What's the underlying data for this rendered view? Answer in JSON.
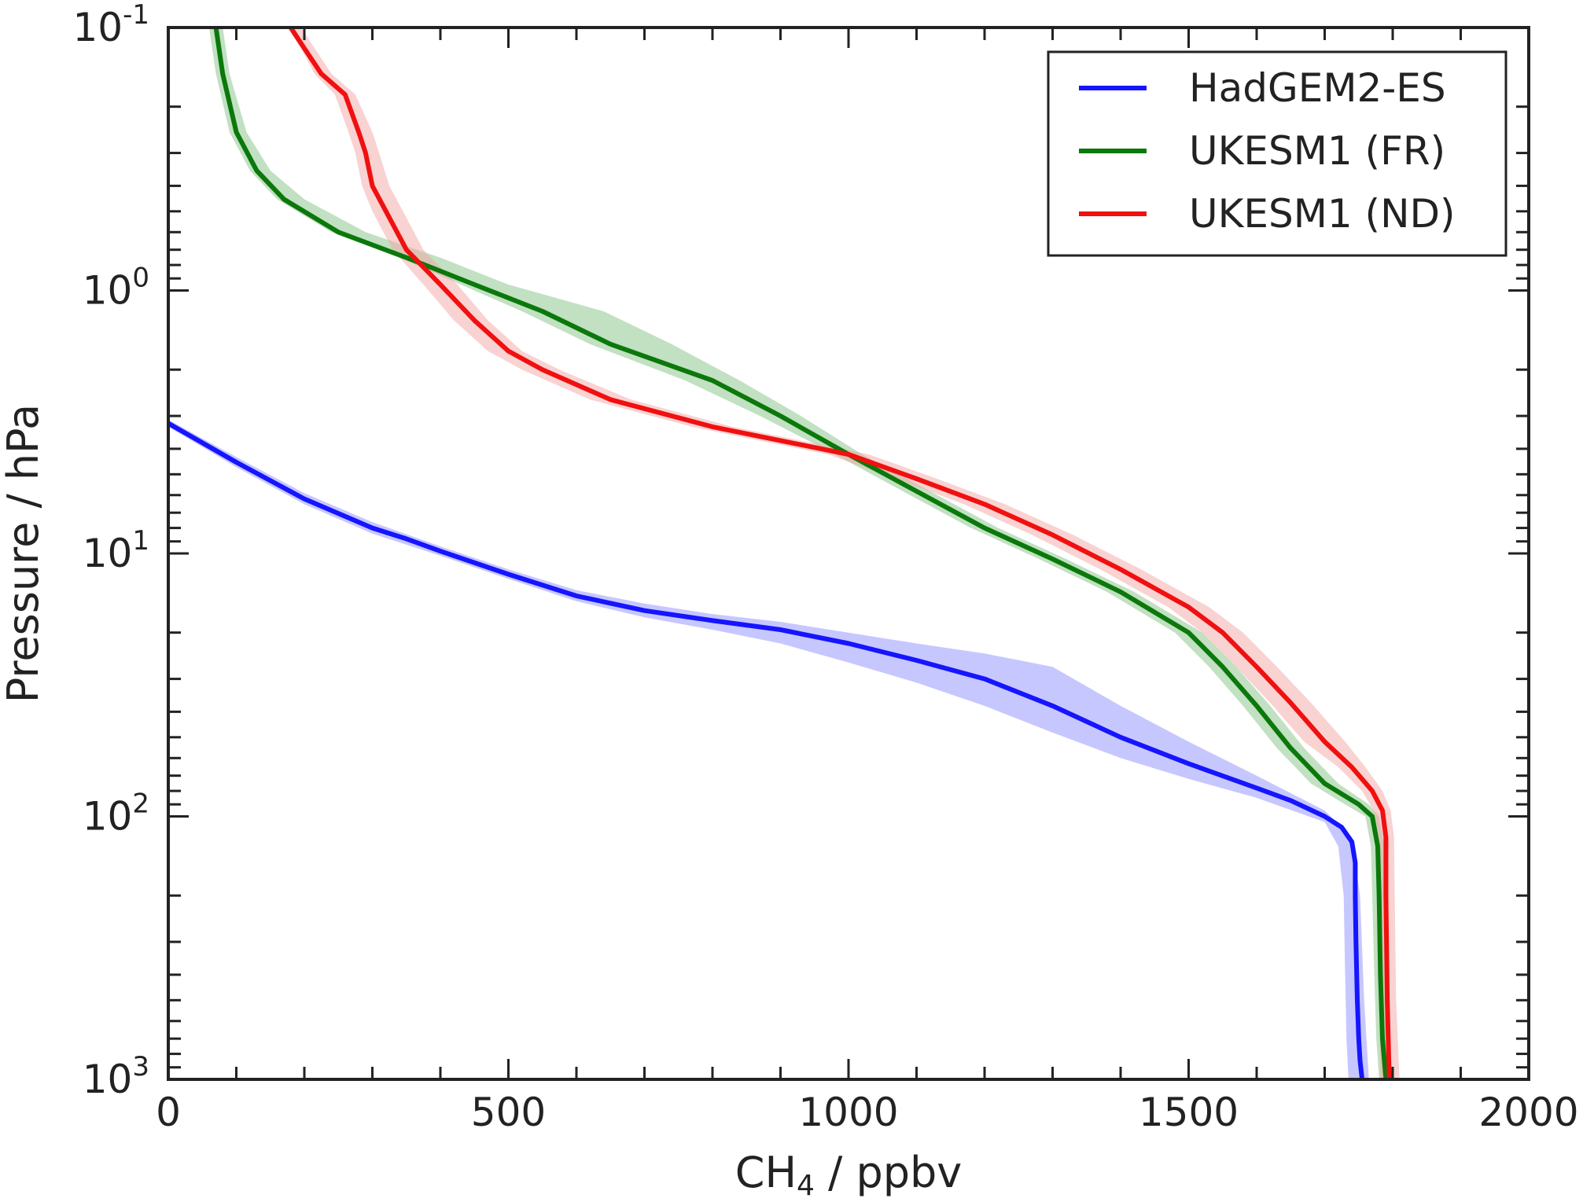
{
  "chart_data": {
    "type": "line",
    "title": "",
    "xlabel": {
      "main": "CH",
      "sub": "4",
      "rest": " / ppbv"
    },
    "ylabel": "Pressure / hPa",
    "xlim": [
      0,
      2000
    ],
    "ylim": [
      1000,
      0.1
    ],
    "y_scale": "log",
    "y_inverted": true,
    "grid": false,
    "legend_position": "top-right",
    "x_ticks": [
      {
        "value": 0,
        "label": "0"
      },
      {
        "value": 500,
        "label": "500"
      },
      {
        "value": 1000,
        "label": "1000"
      },
      {
        "value": 1500,
        "label": "1500"
      },
      {
        "value": 2000,
        "label": "2000"
      }
    ],
    "y_ticks": [
      {
        "value": 0.1,
        "base": "10",
        "exp": "-1"
      },
      {
        "value": 1,
        "base": "10",
        "exp": "0"
      },
      {
        "value": 10,
        "base": "10",
        "exp": "1"
      },
      {
        "value": 100,
        "base": "10",
        "exp": "2"
      },
      {
        "value": 1000,
        "base": "10",
        "exp": "3"
      }
    ],
    "series": [
      {
        "name": "HadGEM2-ES",
        "color": "#1515ff",
        "band_color": "#8f8fff",
        "points": [
          [
            0,
            3.2
          ],
          [
            100,
            4.5
          ],
          [
            200,
            6.2
          ],
          [
            300,
            8.0
          ],
          [
            350,
            8.8
          ],
          [
            400,
            9.8
          ],
          [
            500,
            12.0
          ],
          [
            600,
            14.5
          ],
          [
            700,
            16.5
          ],
          [
            800,
            18.0
          ],
          [
            900,
            19.5
          ],
          [
            1000,
            22.0
          ],
          [
            1100,
            25.5
          ],
          [
            1200,
            30.0
          ],
          [
            1300,
            38.0
          ],
          [
            1400,
            50.0
          ],
          [
            1500,
            63.0
          ],
          [
            1600,
            78.0
          ],
          [
            1650,
            87.0
          ],
          [
            1700,
            100
          ],
          [
            1725,
            110
          ],
          [
            1740,
            125
          ],
          [
            1745,
            150
          ],
          [
            1745,
            200
          ],
          [
            1746,
            300
          ],
          [
            1748,
            500
          ],
          [
            1750,
            700
          ],
          [
            1752,
            850
          ],
          [
            1755,
            1000
          ]
        ],
        "band_low": [
          [
            0,
            3.3
          ],
          [
            100,
            4.7
          ],
          [
            200,
            6.5
          ],
          [
            300,
            8.4
          ],
          [
            400,
            10.2
          ],
          [
            500,
            12.5
          ],
          [
            600,
            15.2
          ],
          [
            700,
            17.5
          ],
          [
            800,
            19.5
          ],
          [
            900,
            22.0
          ],
          [
            1000,
            26.0
          ],
          [
            1100,
            31.0
          ],
          [
            1200,
            38.0
          ],
          [
            1300,
            48.0
          ],
          [
            1400,
            60.0
          ],
          [
            1500,
            72.0
          ],
          [
            1600,
            85.0
          ],
          [
            1700,
            105
          ],
          [
            1720,
            130
          ],
          [
            1728,
            200
          ],
          [
            1730,
            400
          ],
          [
            1732,
            700
          ],
          [
            1735,
            1000
          ]
        ],
        "band_high": [
          [
            0,
            3.1
          ],
          [
            100,
            4.3
          ],
          [
            200,
            5.9
          ],
          [
            300,
            7.6
          ],
          [
            400,
            9.4
          ],
          [
            500,
            11.5
          ],
          [
            600,
            13.8
          ],
          [
            700,
            15.5
          ],
          [
            800,
            17.0
          ],
          [
            900,
            18.2
          ],
          [
            1000,
            20.0
          ],
          [
            1100,
            22.0
          ],
          [
            1200,
            24.0
          ],
          [
            1300,
            27.0
          ],
          [
            1400,
            38.0
          ],
          [
            1500,
            52.0
          ],
          [
            1600,
            70.0
          ],
          [
            1700,
            95.0
          ],
          [
            1740,
            120
          ],
          [
            1752,
            200
          ],
          [
            1758,
            500
          ],
          [
            1765,
            1000
          ]
        ]
      },
      {
        "name": "UKESM1 (FR)",
        "color": "#0a780a",
        "band_color": "#86c286",
        "points": [
          [
            70,
            0.1
          ],
          [
            80,
            0.15
          ],
          [
            100,
            0.25
          ],
          [
            130,
            0.35
          ],
          [
            170,
            0.45
          ],
          [
            250,
            0.6
          ],
          [
            350,
            0.75
          ],
          [
            450,
            0.95
          ],
          [
            550,
            1.2
          ],
          [
            650,
            1.6
          ],
          [
            800,
            2.2
          ],
          [
            900,
            3.0
          ],
          [
            1000,
            4.2
          ],
          [
            1100,
            5.8
          ],
          [
            1200,
            8.0
          ],
          [
            1300,
            10.5
          ],
          [
            1400,
            14.0
          ],
          [
            1500,
            20.0
          ],
          [
            1550,
            27.0
          ],
          [
            1600,
            38.0
          ],
          [
            1650,
            55.0
          ],
          [
            1700,
            75.0
          ],
          [
            1750,
            90.0
          ],
          [
            1770,
            100
          ],
          [
            1778,
            130
          ],
          [
            1780,
            200
          ],
          [
            1782,
            400
          ],
          [
            1785,
            700
          ],
          [
            1790,
            1000
          ]
        ],
        "band_low": [
          [
            60,
            0.1
          ],
          [
            70,
            0.15
          ],
          [
            90,
            0.25
          ],
          [
            120,
            0.35
          ],
          [
            160,
            0.45
          ],
          [
            240,
            0.6
          ],
          [
            340,
            0.75
          ],
          [
            430,
            0.95
          ],
          [
            520,
            1.2
          ],
          [
            620,
            1.6
          ],
          [
            760,
            2.2
          ],
          [
            870,
            3.0
          ],
          [
            980,
            4.2
          ],
          [
            1080,
            5.8
          ],
          [
            1180,
            8.0
          ],
          [
            1280,
            10.5
          ],
          [
            1380,
            14.0
          ],
          [
            1480,
            20.0
          ],
          [
            1530,
            27.0
          ],
          [
            1580,
            38.0
          ],
          [
            1630,
            55.0
          ],
          [
            1680,
            75.0
          ],
          [
            1730,
            90.0
          ],
          [
            1760,
            100
          ],
          [
            1768,
            130
          ],
          [
            1770,
            200
          ],
          [
            1773,
            400
          ],
          [
            1776,
            700
          ],
          [
            1780,
            1000
          ]
        ],
        "band_high": [
          [
            80,
            0.1
          ],
          [
            90,
            0.15
          ],
          [
            115,
            0.25
          ],
          [
            150,
            0.35
          ],
          [
            200,
            0.45
          ],
          [
            290,
            0.6
          ],
          [
            400,
            0.75
          ],
          [
            500,
            0.95
          ],
          [
            640,
            1.2
          ],
          [
            740,
            1.6
          ],
          [
            840,
            2.2
          ],
          [
            930,
            3.0
          ],
          [
            1020,
            4.2
          ],
          [
            1120,
            5.8
          ],
          [
            1220,
            8.0
          ],
          [
            1320,
            10.5
          ],
          [
            1420,
            14.0
          ],
          [
            1520,
            20.0
          ],
          [
            1570,
            27.0
          ],
          [
            1620,
            38.0
          ],
          [
            1670,
            55.0
          ],
          [
            1720,
            75.0
          ],
          [
            1765,
            90.0
          ],
          [
            1780,
            100
          ],
          [
            1788,
            130
          ],
          [
            1790,
            200
          ],
          [
            1792,
            400
          ],
          [
            1795,
            700
          ],
          [
            1800,
            1000
          ]
        ]
      },
      {
        "name": "UKESM1 (ND)",
        "color": "#f01010",
        "band_color": "#f4a6a6",
        "points": [
          [
            180,
            0.1
          ],
          [
            200,
            0.12
          ],
          [
            225,
            0.15
          ],
          [
            260,
            0.18
          ],
          [
            280,
            0.25
          ],
          [
            290,
            0.3
          ],
          [
            300,
            0.4
          ],
          [
            320,
            0.5
          ],
          [
            350,
            0.7
          ],
          [
            400,
            0.95
          ],
          [
            450,
            1.3
          ],
          [
            500,
            1.7
          ],
          [
            550,
            2.0
          ],
          [
            650,
            2.6
          ],
          [
            800,
            3.3
          ],
          [
            1000,
            4.2
          ],
          [
            1100,
            5.2
          ],
          [
            1200,
            6.5
          ],
          [
            1300,
            8.5
          ],
          [
            1400,
            11.5
          ],
          [
            1500,
            16.0
          ],
          [
            1550,
            20.0
          ],
          [
            1600,
            27.0
          ],
          [
            1650,
            37.0
          ],
          [
            1700,
            52.0
          ],
          [
            1740,
            65.0
          ],
          [
            1770,
            80.0
          ],
          [
            1785,
            95.0
          ],
          [
            1790,
            120
          ],
          [
            1790,
            200
          ],
          [
            1792,
            500
          ],
          [
            1795,
            1000
          ]
        ],
        "band_low": [
          [
            175,
            0.1
          ],
          [
            195,
            0.12
          ],
          [
            215,
            0.15
          ],
          [
            245,
            0.18
          ],
          [
            265,
            0.25
          ],
          [
            275,
            0.3
          ],
          [
            285,
            0.4
          ],
          [
            300,
            0.5
          ],
          [
            330,
            0.7
          ],
          [
            375,
            0.95
          ],
          [
            420,
            1.3
          ],
          [
            470,
            1.7
          ],
          [
            520,
            2.0
          ],
          [
            620,
            2.6
          ],
          [
            770,
            3.3
          ],
          [
            970,
            4.2
          ],
          [
            1070,
            5.2
          ],
          [
            1170,
            6.5
          ],
          [
            1270,
            8.5
          ],
          [
            1370,
            11.5
          ],
          [
            1470,
            16.0
          ],
          [
            1520,
            20.0
          ],
          [
            1570,
            27.0
          ],
          [
            1620,
            37.0
          ],
          [
            1670,
            52.0
          ],
          [
            1720,
            65.0
          ],
          [
            1755,
            80.0
          ],
          [
            1772,
            95.0
          ],
          [
            1777,
            120
          ],
          [
            1778,
            200
          ],
          [
            1780,
            500
          ],
          [
            1782,
            1000
          ]
        ],
        "band_high": [
          [
            195,
            0.1
          ],
          [
            215,
            0.12
          ],
          [
            240,
            0.15
          ],
          [
            275,
            0.18
          ],
          [
            300,
            0.25
          ],
          [
            310,
            0.3
          ],
          [
            325,
            0.4
          ],
          [
            345,
            0.5
          ],
          [
            375,
            0.7
          ],
          [
            425,
            0.95
          ],
          [
            470,
            1.3
          ],
          [
            520,
            1.7
          ],
          [
            575,
            2.0
          ],
          [
            680,
            2.6
          ],
          [
            830,
            3.3
          ],
          [
            1030,
            4.2
          ],
          [
            1130,
            5.2
          ],
          [
            1230,
            6.5
          ],
          [
            1330,
            8.5
          ],
          [
            1430,
            11.5
          ],
          [
            1530,
            16.0
          ],
          [
            1580,
            20.0
          ],
          [
            1630,
            27.0
          ],
          [
            1680,
            37.0
          ],
          [
            1730,
            52.0
          ],
          [
            1760,
            65.0
          ],
          [
            1785,
            80.0
          ],
          [
            1797,
            95.0
          ],
          [
            1802,
            120
          ],
          [
            1803,
            200
          ],
          [
            1805,
            500
          ],
          [
            1810,
            1000
          ]
        ]
      }
    ]
  }
}
